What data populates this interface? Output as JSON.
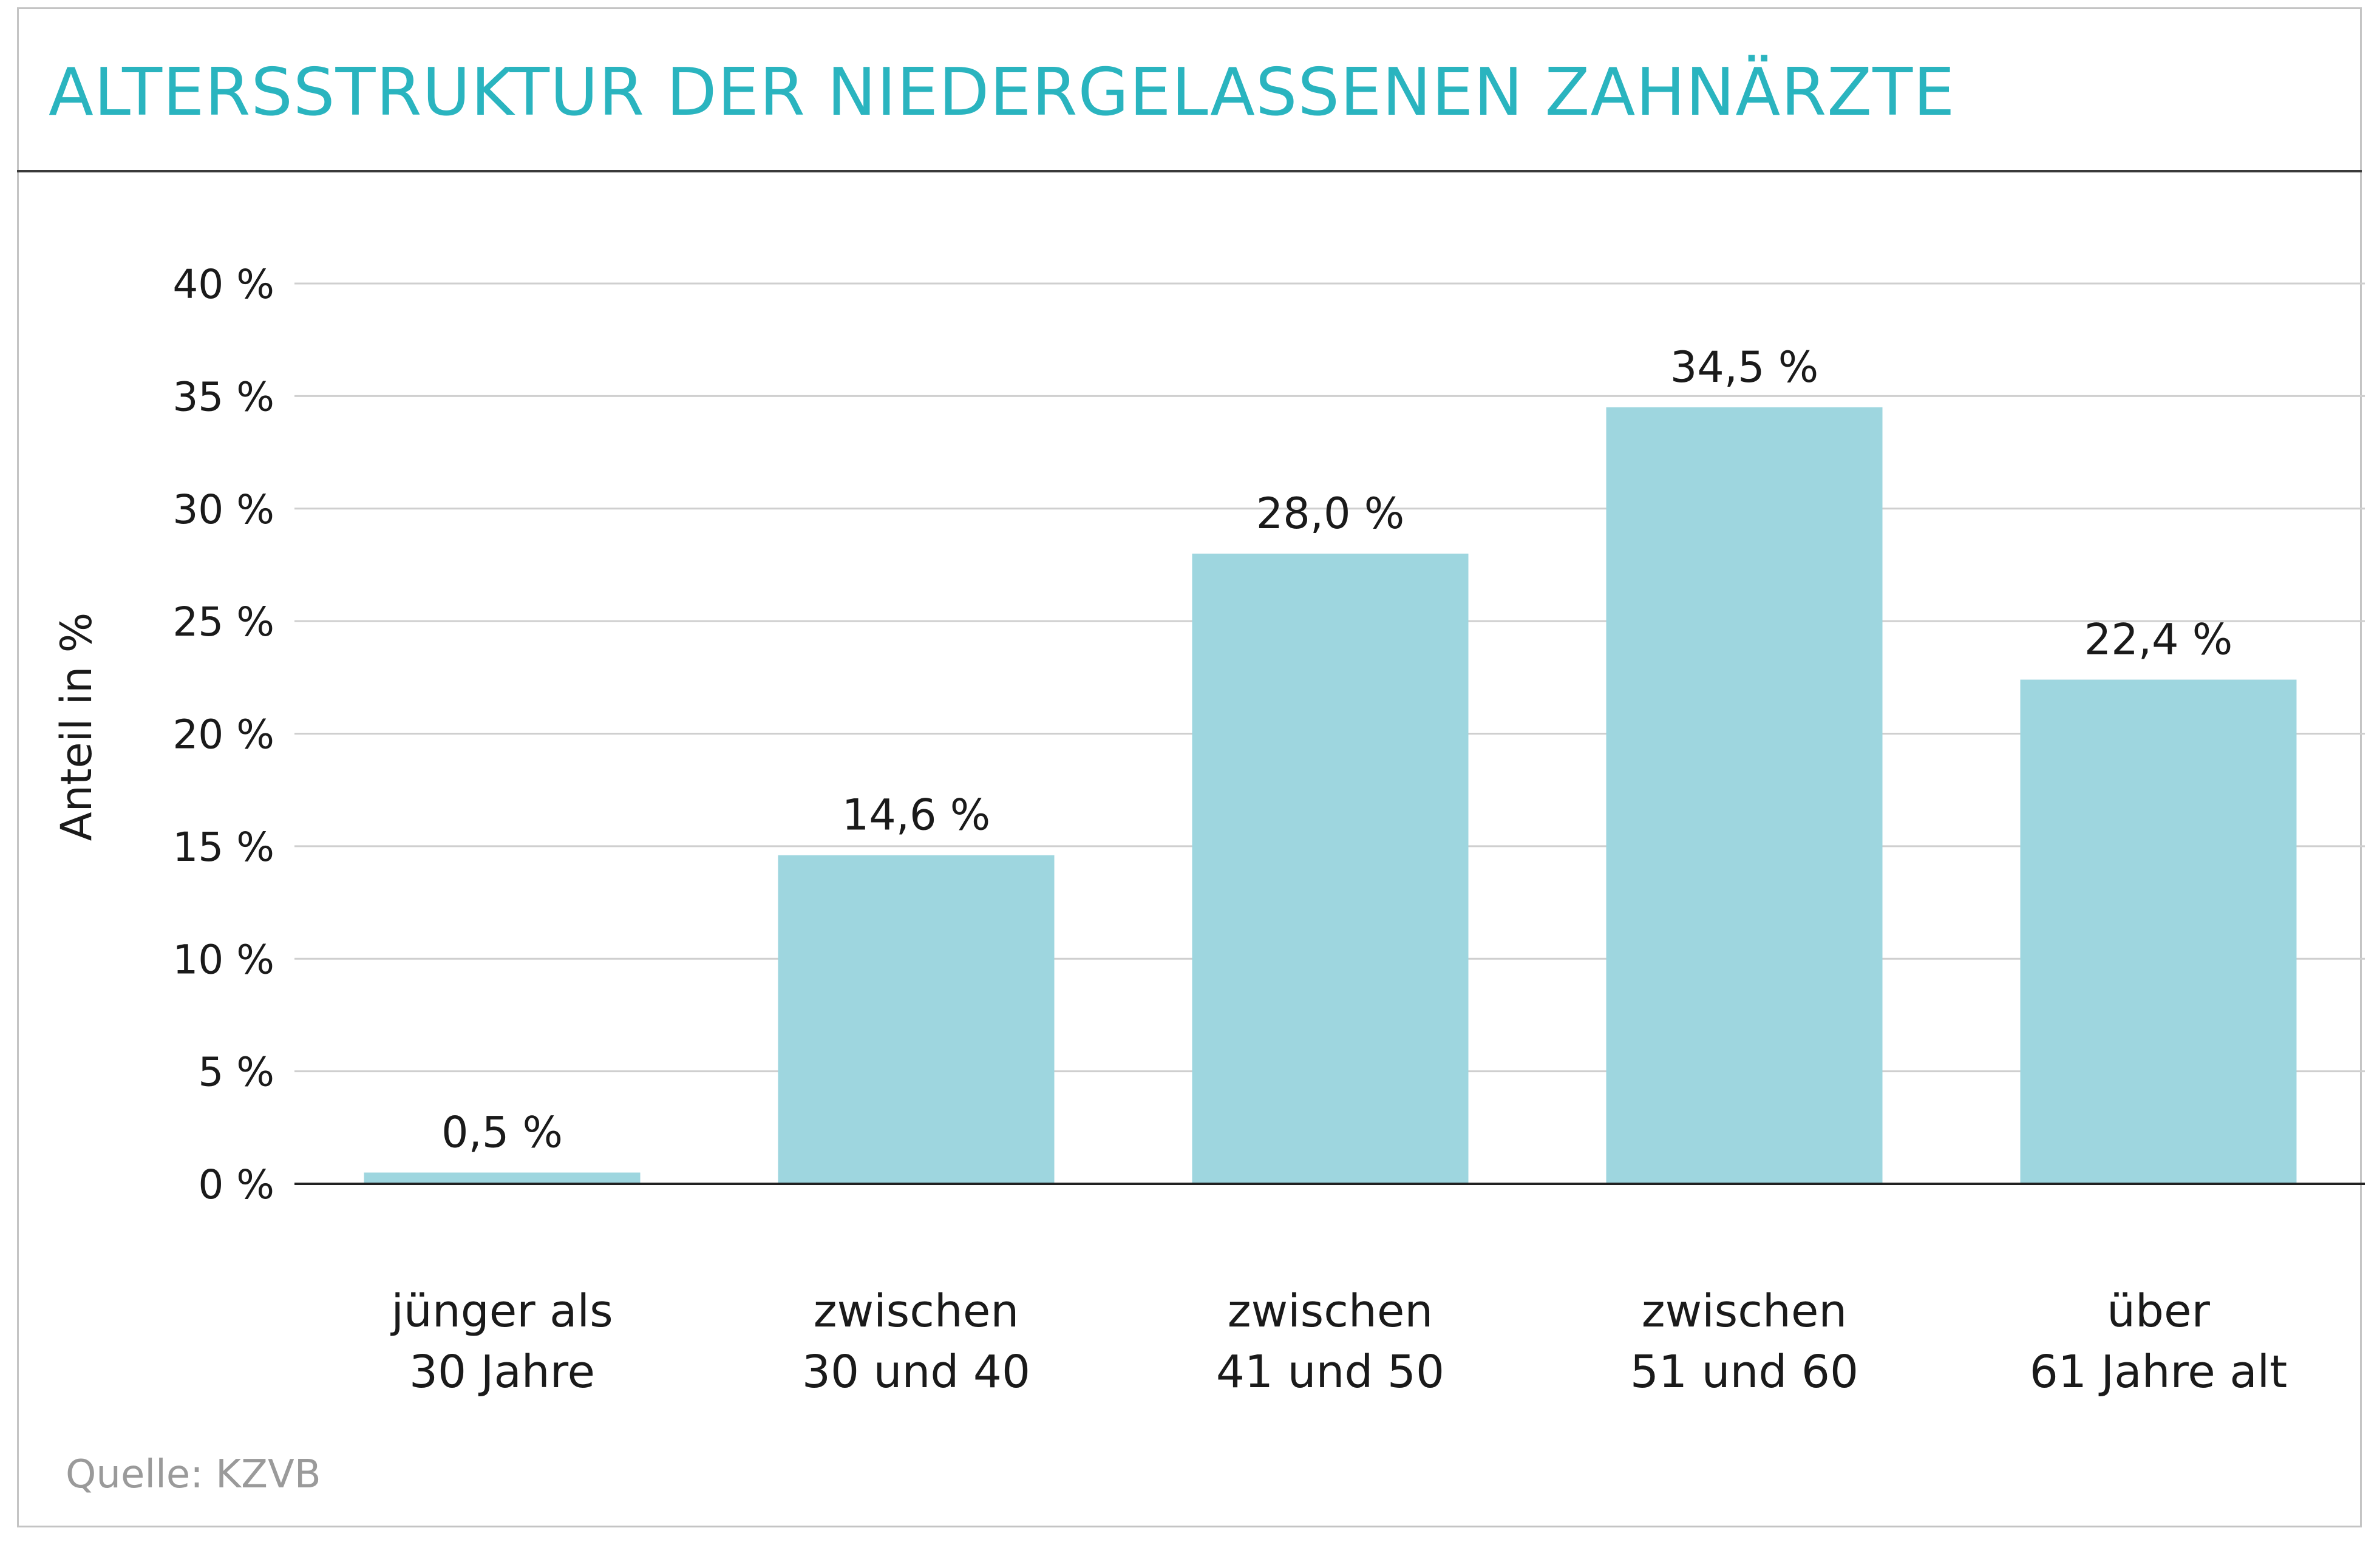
{
  "title": "ALTERSSTRUKTUR DER NIEDERGELASSENEN ZAHNÄRZTE",
  "source": "Quelle: KZVB",
  "colors": {
    "title": "#2ab4bf",
    "bar": "#9ed6df",
    "grid": "#cfcfcf",
    "axis": "#222222"
  },
  "chart_data": {
    "type": "bar",
    "title": "ALTERSSTRUKTUR DER NIEDERGELASSENEN ZAHNÄRZTE",
    "xlabel": "",
    "ylabel": "Anteil in %",
    "ylim": [
      0,
      40
    ],
    "yticks": [
      0,
      5,
      10,
      15,
      20,
      25,
      30,
      35,
      40
    ],
    "ytick_labels": [
      "0 %",
      "5 %",
      "10 %",
      "15 %",
      "20 %",
      "25 %",
      "30 %",
      "35 %",
      "40 %"
    ],
    "grid": true,
    "categories": [
      [
        "jünger als",
        "30 Jahre"
      ],
      [
        "zwischen",
        "30 und 40"
      ],
      [
        "zwischen",
        "41 und 50"
      ],
      [
        "zwischen",
        "51 und 60"
      ],
      [
        "über",
        "61 Jahre alt"
      ]
    ],
    "values": [
      0.5,
      14.6,
      28.0,
      34.5,
      22.4
    ],
    "value_labels": [
      "0,5 %",
      "14,6 %",
      "28,0 %",
      "34,5 %",
      "22,4 %"
    ]
  }
}
